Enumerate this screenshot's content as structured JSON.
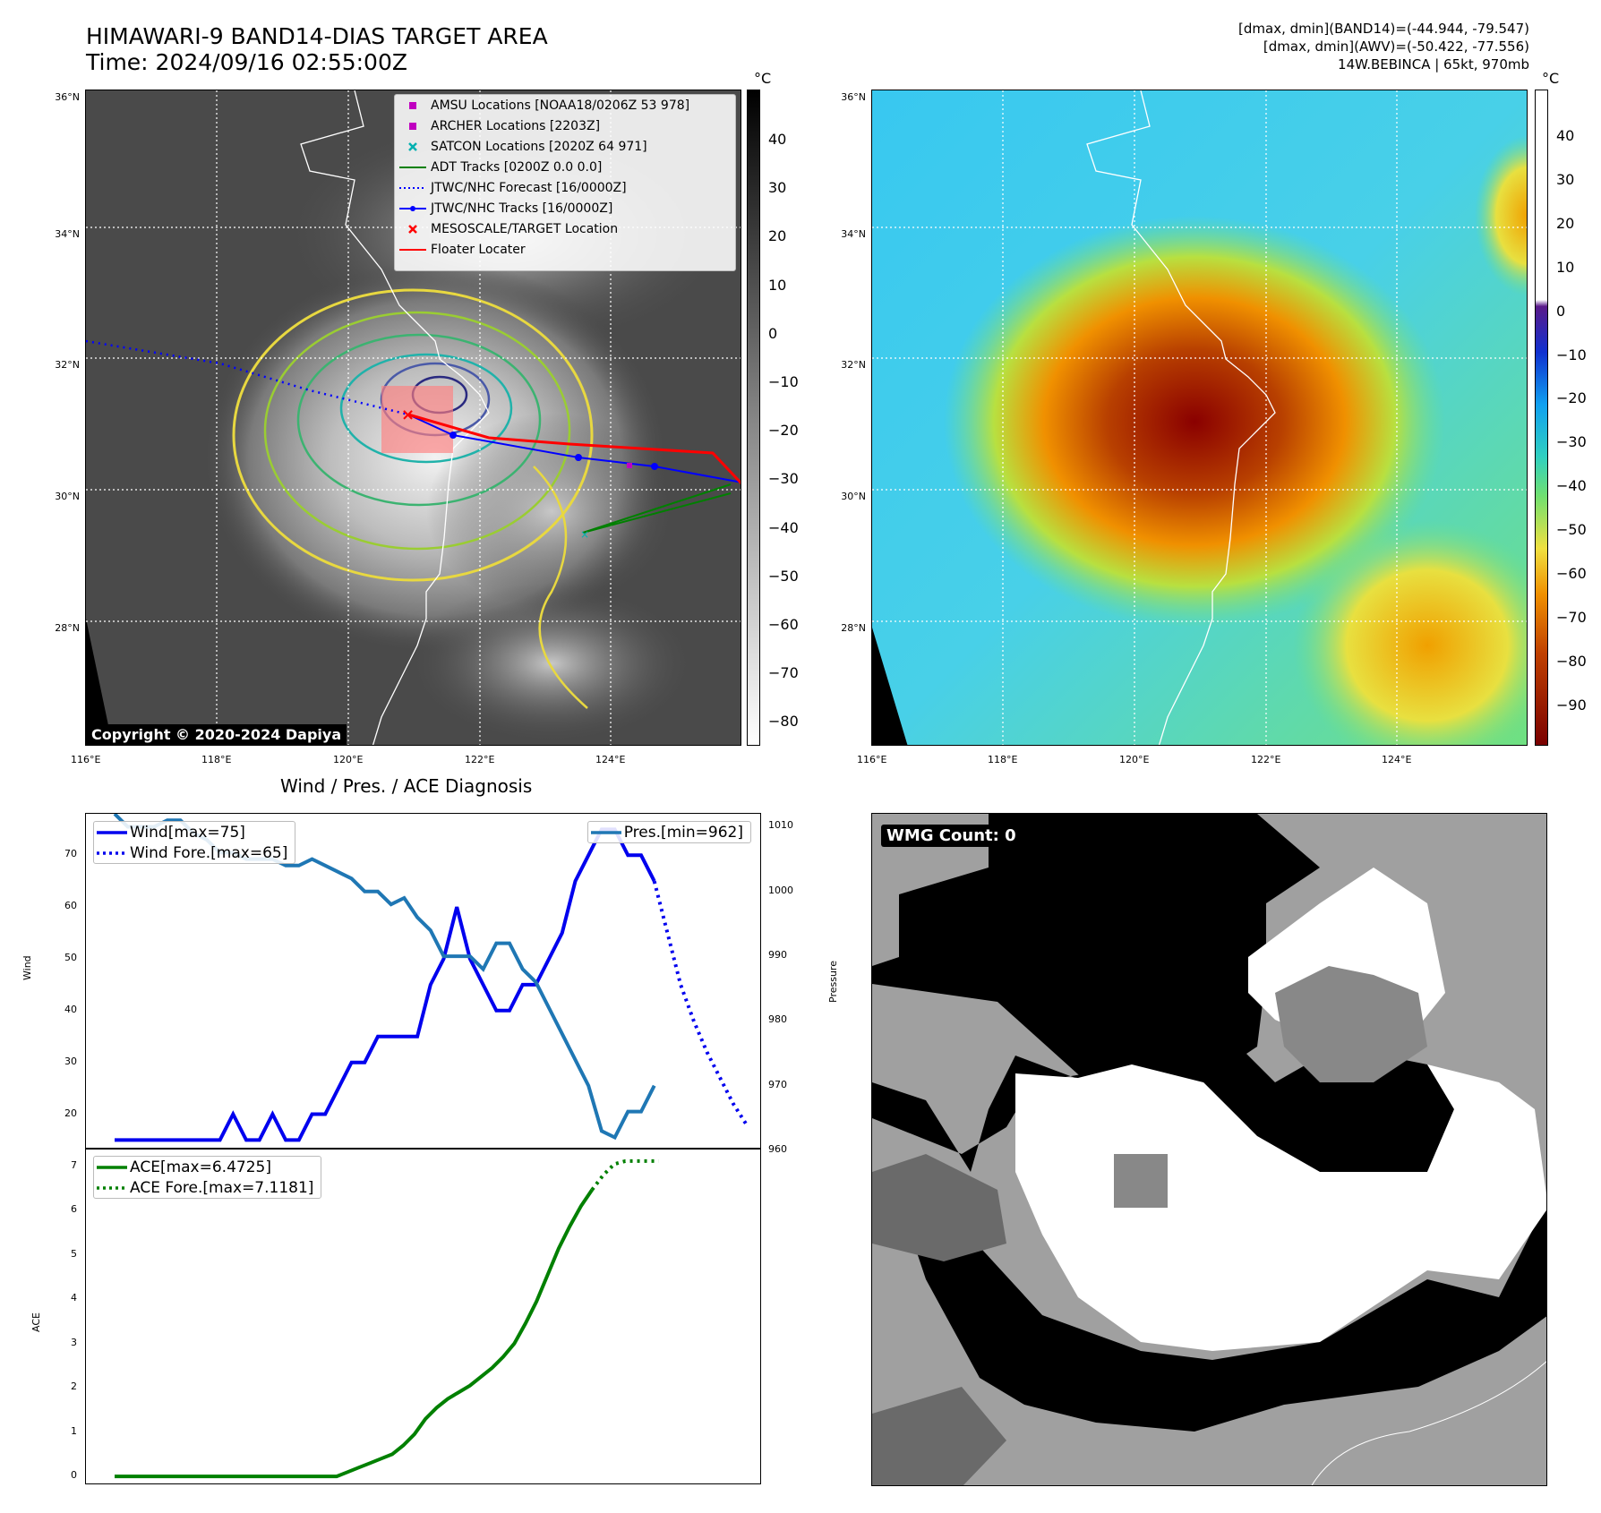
{
  "header": {
    "title_line1": "HIMAWARI-9 BAND14-DIAS TARGET AREA",
    "title_line2": "Time: 2024/09/16 02:55:00Z",
    "info_line1": "[dmax, dmin](BAND14)=(-44.944, -79.547)",
    "info_line2": "[dmax, dmin](AWV)=(-50.422, -77.556)",
    "info_line3": "14W.BEBINCA | 65kt, 970mb"
  },
  "map": {
    "lat_labels": [
      "36°N",
      "34°N",
      "32°N",
      "30°N",
      "28°N"
    ],
    "lon_labels": [
      "116°E",
      "118°E",
      "120°E",
      "122°E",
      "124°E"
    ],
    "copyright": "Copyright © 2020-2024 Dapiya",
    "colorbar_unit": "°C",
    "ir_colorbar_ticks": [
      "40",
      "30",
      "20",
      "10",
      "0",
      "−10",
      "−20",
      "−30",
      "−40",
      "−50",
      "−60",
      "−70",
      "−80"
    ],
    "wv_colorbar_ticks": [
      "40",
      "30",
      "20",
      "10",
      "0",
      "−10",
      "−20",
      "−30",
      "−40",
      "−50",
      "−60",
      "−70",
      "−80",
      "−90"
    ],
    "legend": [
      {
        "label": "AMSU Locations [NOAA18/0206Z 53 978]",
        "symbol": "square",
        "color": "#c000c0"
      },
      {
        "label": "ARCHER Locations [2203Z]",
        "symbol": "square",
        "color": "#c000c0"
      },
      {
        "label": "SATCON Locations [2020Z 64 971]",
        "symbol": "x",
        "color": "#00b0b0"
      },
      {
        "label": "ADT Tracks [0200Z 0.0 0.0]",
        "symbol": "line",
        "color": "#008000"
      },
      {
        "label": "JTWC/NHC Forecast [16/0000Z]",
        "symbol": "dotted",
        "color": "#0000ff"
      },
      {
        "label": "JTWC/NHC Tracks [16/0000Z]",
        "symbol": "line-dot",
        "color": "#0000ff"
      },
      {
        "label": "MESOSCALE/TARGET Location",
        "symbol": "x",
        "color": "#ff0000"
      },
      {
        "label": "Floater Locater",
        "symbol": "line",
        "color": "#ff0000"
      }
    ]
  },
  "wmg": {
    "label": "WMG Count: 0"
  },
  "chart_data": [
    {
      "type": "line",
      "title": "Wind / Pres. / ACE Diagnosis",
      "ylabel": "Wind",
      "y2label": "Pressure",
      "ylim": [
        13,
        78
      ],
      "y2lim": [
        960,
        1012
      ],
      "yticks": [
        "70",
        "60",
        "50",
        "40",
        "30",
        "20"
      ],
      "y2ticks": [
        "1010",
        "1000",
        "990",
        "980",
        "970",
        "960"
      ],
      "series": [
        {
          "name": "Wind[max=75]",
          "axis": "left",
          "style": "solid",
          "color": "#0000ee",
          "values": [
            15,
            15,
            15,
            15,
            15,
            15,
            15,
            15,
            15,
            20,
            15,
            15,
            20,
            15,
            15,
            20,
            20,
            25,
            30,
            30,
            35,
            35,
            35,
            35,
            45,
            50,
            60,
            50,
            45,
            40,
            40,
            45,
            45,
            50,
            55,
            65,
            70,
            75,
            75,
            70,
            70,
            65
          ]
        },
        {
          "name": "Wind Fore.[max=65]",
          "axis": "left",
          "style": "dotted",
          "color": "#0000ee",
          "x_start": 41,
          "values": [
            65,
            55,
            45,
            38,
            32,
            27,
            22,
            18
          ]
        },
        {
          "name": "Pres.[min=962]",
          "axis": "right",
          "style": "solid",
          "color": "#1f77b4",
          "values": [
            1012,
            1010,
            1010,
            1010,
            1011,
            1011,
            1009,
            1008,
            1006,
            1006,
            1005,
            1005,
            1005,
            1004,
            1004,
            1005,
            1004,
            1003,
            1002,
            1000,
            1000,
            998,
            999,
            996,
            994,
            990,
            990,
            990,
            988,
            992,
            992,
            988,
            986,
            982,
            978,
            974,
            970,
            963,
            962,
            966,
            966,
            970
          ]
        }
      ]
    },
    {
      "type": "line",
      "ylabel": "ACE",
      "ylim": [
        -0.2,
        7.4
      ],
      "yticks": [
        "7",
        "6",
        "5",
        "4",
        "3",
        "2",
        "1",
        "0"
      ],
      "series": [
        {
          "name": "ACE[max=6.4725]",
          "style": "solid",
          "color": "#008000",
          "values": [
            0,
            0,
            0,
            0,
            0,
            0,
            0,
            0,
            0,
            0,
            0,
            0,
            0,
            0,
            0,
            0,
            0,
            0,
            0,
            0,
            0,
            0.1,
            0.2,
            0.3,
            0.4,
            0.5,
            0.7,
            0.95,
            1.3,
            1.55,
            1.75,
            1.9,
            2.05,
            2.25,
            2.45,
            2.7,
            3.0,
            3.45,
            3.95,
            4.55,
            5.15,
            5.65,
            6.1,
            6.47
          ]
        },
        {
          "name": "ACE Fore.[max=7.1181]",
          "style": "dotted",
          "color": "#008000",
          "x_start": 43,
          "values": [
            6.47,
            6.8,
            7.05,
            7.12,
            7.12,
            7.12,
            7.12
          ]
        }
      ]
    }
  ]
}
